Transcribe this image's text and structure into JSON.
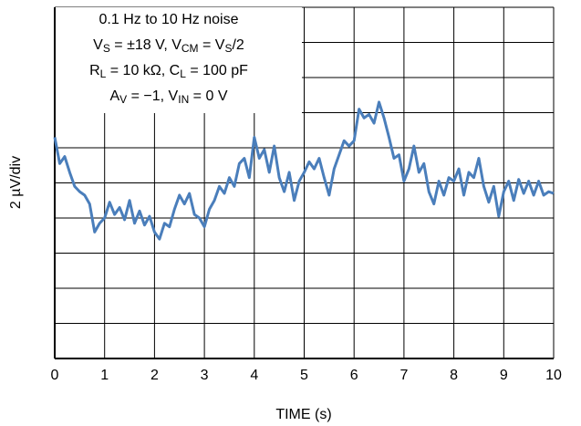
{
  "chart_data": {
    "type": "line",
    "annotation": [
      [
        {
          "t": "0.1 Hz to 10 Hz noise"
        }
      ],
      [
        {
          "t": "V"
        },
        {
          "t": "S",
          "sub": true
        },
        {
          "t": " = ±18 V, V"
        },
        {
          "t": "CM",
          "sub": true
        },
        {
          "t": " = V"
        },
        {
          "t": "S",
          "sub": true
        },
        {
          "t": "/2"
        }
      ],
      [
        {
          "t": "R"
        },
        {
          "t": "L",
          "sub": true
        },
        {
          "t": " = 10 kΩ, C"
        },
        {
          "t": "L",
          "sub": true
        },
        {
          "t": " = 100 pF"
        }
      ],
      [
        {
          "t": "A"
        },
        {
          "t": "V",
          "sub": true
        },
        {
          "t": " = −1, V"
        },
        {
          "t": "IN",
          "sub": true
        },
        {
          "t": " = 0 V"
        }
      ]
    ],
    "xlabel": "TIME (s)",
    "ylabel": "2 µV/div",
    "x": [
      0,
      0.1,
      0.2,
      0.3,
      0.4,
      0.5,
      0.6,
      0.7,
      0.8,
      0.9,
      1,
      1.1,
      1.2,
      1.3,
      1.4,
      1.5,
      1.6,
      1.7,
      1.8,
      1.9,
      2,
      2.1,
      2.2,
      2.3,
      2.4,
      2.5,
      2.6,
      2.7,
      2.8,
      2.9,
      3,
      3.1,
      3.2,
      3.3,
      3.4,
      3.5,
      3.6,
      3.7,
      3.8,
      3.9,
      4,
      4.1,
      4.2,
      4.3,
      4.4,
      4.5,
      4.6,
      4.7,
      4.8,
      4.9,
      5,
      5.1,
      5.2,
      5.3,
      5.4,
      5.5,
      5.6,
      5.7,
      5.8,
      5.9,
      6,
      6.1,
      6.2,
      6.3,
      6.4,
      6.5,
      6.6,
      6.7,
      6.8,
      6.9,
      7,
      7.1,
      7.2,
      7.3,
      7.4,
      7.5,
      7.6,
      7.7,
      7.8,
      7.9,
      8,
      8.1,
      8.2,
      8.3,
      8.4,
      8.5,
      8.6,
      8.7,
      8.8,
      8.9,
      9,
      9.1,
      9.2,
      9.3,
      9.4,
      9.5,
      9.6,
      9.7,
      9.8,
      9.9,
      10
    ],
    "series": [
      {
        "color": "#4a7ebb",
        "values": [
          2.6,
          1.1,
          1.5,
          0.6,
          -0.2,
          -0.5,
          -0.7,
          -1.2,
          -2.8,
          -2.3,
          -2.0,
          -1.1,
          -1.8,
          -1.4,
          -2.1,
          -1.0,
          -2.3,
          -1.6,
          -2.4,
          -1.9,
          -2.8,
          -3.2,
          -2.3,
          -2.5,
          -1.5,
          -0.7,
          -1.2,
          -0.6,
          -1.8,
          -2.0,
          -2.5,
          -1.5,
          -1.0,
          -0.2,
          -0.6,
          0.3,
          -0.2,
          1.1,
          1.4,
          0.3,
          2.6,
          1.4,
          1.9,
          0.6,
          2.1,
          0.3,
          -0.5,
          0.6,
          -1.0,
          0.1,
          0.6,
          1.2,
          0.8,
          1.4,
          0.3,
          -0.7,
          0.8,
          1.6,
          2.4,
          2.1,
          2.4,
          4.2,
          3.7,
          3.9,
          3.4,
          4.6,
          3.7,
          2.6,
          1.4,
          1.6,
          0.1,
          0.8,
          2.1,
          0.6,
          1.1,
          -0.5,
          -1.2,
          0.1,
          -0.7,
          0.3,
          0.1,
          0.8,
          -0.7,
          0.6,
          0.3,
          1.4,
          -0.2,
          -1.1,
          -0.2,
          -1.9,
          -0.5,
          0.1,
          -1.0,
          0.2,
          -0.6,
          0.1,
          -0.7,
          0.1,
          -0.7,
          -0.5,
          -0.6
        ]
      }
    ],
    "xlim": [
      0,
      10
    ],
    "xticks": [
      0,
      1,
      2,
      3,
      4,
      5,
      6,
      7,
      8,
      9,
      10
    ],
    "ylim": [
      -10,
      10
    ],
    "yticks": [
      -10,
      -8,
      -6,
      -4,
      -2,
      0,
      2,
      4,
      6,
      8,
      10
    ],
    "grid": true
  }
}
